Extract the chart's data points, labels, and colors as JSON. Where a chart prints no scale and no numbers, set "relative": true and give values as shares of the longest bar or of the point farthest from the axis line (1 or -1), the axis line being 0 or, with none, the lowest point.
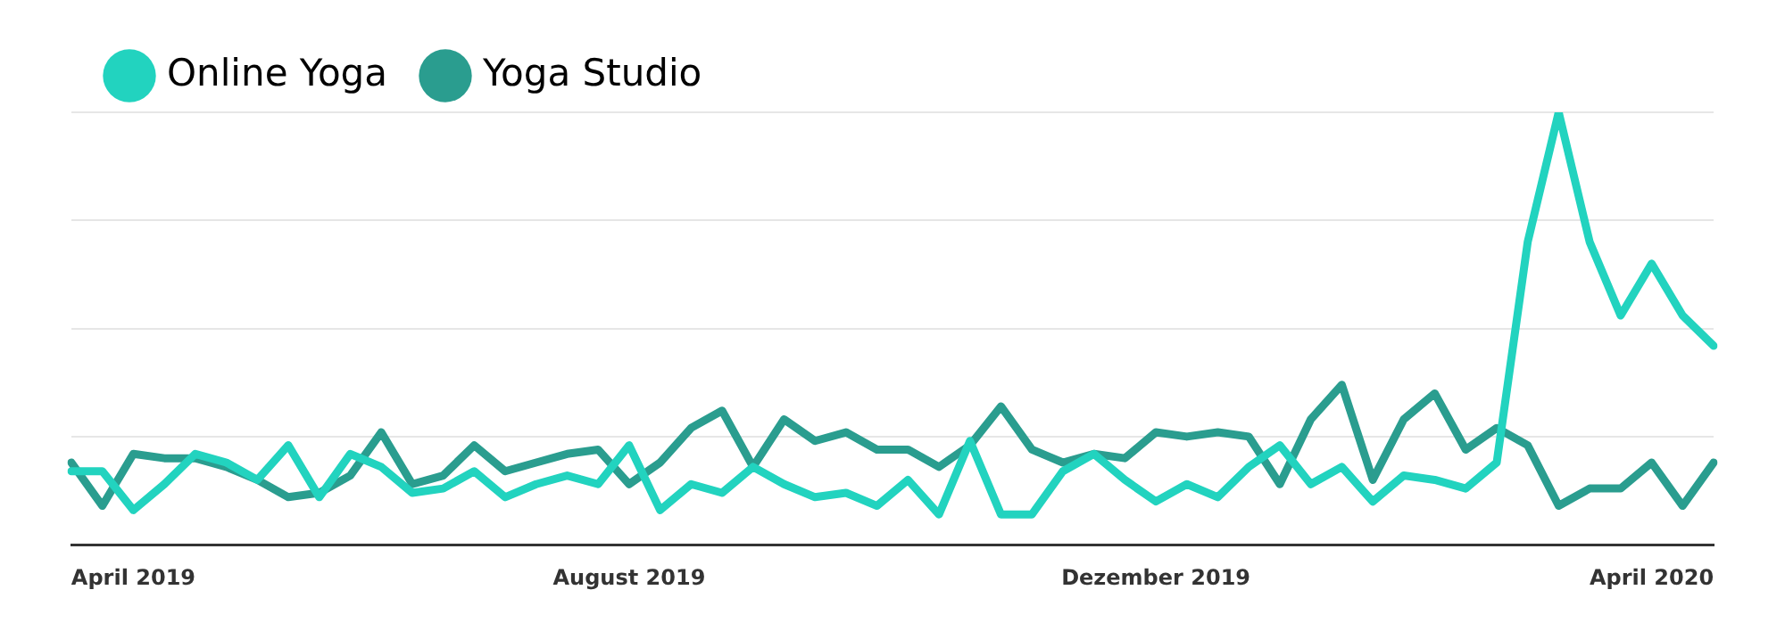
{
  "chart_data": {
    "type": "line",
    "relative": true,
    "grid": "y",
    "legend": "top left",
    "marker": "none",
    "line_style": "solid",
    "categories": [
      null,
      null,
      "April 2019",
      null,
      null,
      null,
      null,
      null,
      null,
      null,
      null,
      null,
      null,
      null,
      null,
      null,
      null,
      null,
      "August 2019",
      null,
      null,
      null,
      null,
      null,
      null,
      null,
      null,
      null,
      null,
      null,
      null,
      null,
      null,
      null,
      null,
      "Dezember 2019",
      null,
      null,
      null,
      null,
      null,
      null,
      null,
      null,
      null,
      null,
      null,
      null,
      null,
      null,
      null,
      "April 2020",
      null,
      null
    ],
    "series": [
      {
        "name": "Online Yoga",
        "color": "#22d3bf",
        "values": [
          0.17,
          0.17,
          0.08,
          0.14,
          0.21,
          0.19,
          0.15,
          0.23,
          0.11,
          0.21,
          0.18,
          0.12,
          0.13,
          0.17,
          0.11,
          0.14,
          0.16,
          0.14,
          0.23,
          0.08,
          0.14,
          0.12,
          0.18,
          0.14,
          0.11,
          0.12,
          0.09,
          0.15,
          0.07,
          0.24,
          0.07,
          0.07,
          0.17,
          0.21,
          0.15,
          0.1,
          0.14,
          0.11,
          0.18,
          0.23,
          0.14,
          0.18,
          0.1,
          0.16,
          0.15,
          0.13,
          0.19,
          0.7,
          1,
          0.7,
          0.53,
          0.65,
          0.53,
          0.46
        ]
      },
      {
        "name": "Yoga Studio",
        "color": "#2a9d8f",
        "values": [
          0.19,
          0.09,
          0.21,
          0.2,
          0.2,
          0.18,
          0.15,
          0.11,
          0.12,
          0.16,
          0.26,
          0.14,
          0.16,
          0.23,
          0.17,
          0.19,
          0.21,
          0.22,
          0.14,
          0.19,
          0.27,
          0.31,
          0.18,
          0.29,
          0.24,
          0.26,
          0.22,
          0.22,
          0.18,
          0.23,
          0.32,
          0.22,
          0.19,
          0.21,
          0.2,
          0.26,
          0.25,
          0.26,
          0.25,
          0.14,
          0.29,
          0.37,
          0.15,
          0.29,
          0.35,
          0.22,
          0.27,
          0.23,
          0.09,
          0.13,
          0.13,
          0.19,
          0.09,
          0.19
        ]
      }
    ]
  }
}
